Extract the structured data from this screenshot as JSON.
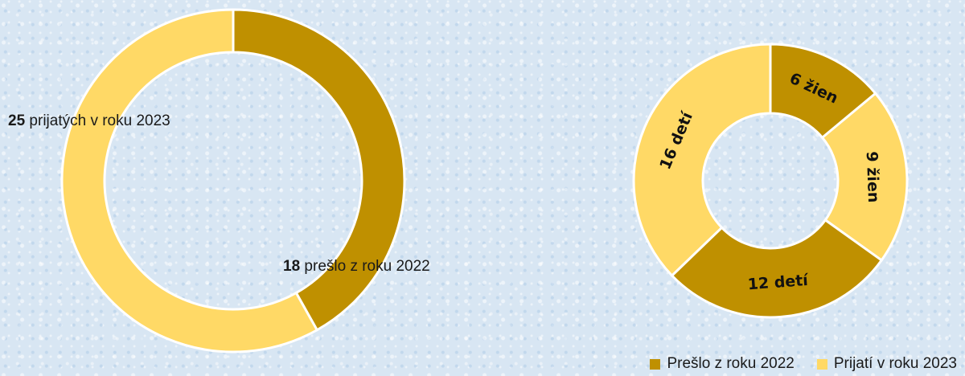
{
  "colors": {
    "preslo": "#bf9000",
    "prijati": "#ffd966"
  },
  "legend": {
    "items": [
      {
        "label": "Prešlo z roku 2022",
        "color": "#bf9000"
      },
      {
        "label": "Prijatí v roku 2023",
        "color": "#ffd966"
      }
    ]
  },
  "chart_data": [
    {
      "type": "pie",
      "variant": "donut",
      "categories": [
        "Prešlo z roku 2022",
        "Prijatí v roku 2023"
      ],
      "values": [
        18,
        25
      ],
      "labels": [
        {
          "value": "18",
          "text": " prešlo z roku 2022"
        },
        {
          "value": "25",
          "text": " prijatých v roku 2023"
        }
      ],
      "colors": [
        "#bf9000",
        "#ffd966"
      ]
    },
    {
      "type": "pie",
      "variant": "donut",
      "categories": [
        "Prešlo z roku 2022 – ženy",
        "Prijatí v roku 2023 – ženy",
        "Prešlo z roku 2022 – deti",
        "Prijatí v roku 2023 – deti"
      ],
      "values": [
        6,
        9,
        12,
        16
      ],
      "labels": [
        "6 žien",
        "9 žien",
        "12 detí",
        "16 detí"
      ],
      "colors": [
        "#bf9000",
        "#ffd966",
        "#bf9000",
        "#ffd966"
      ]
    }
  ]
}
